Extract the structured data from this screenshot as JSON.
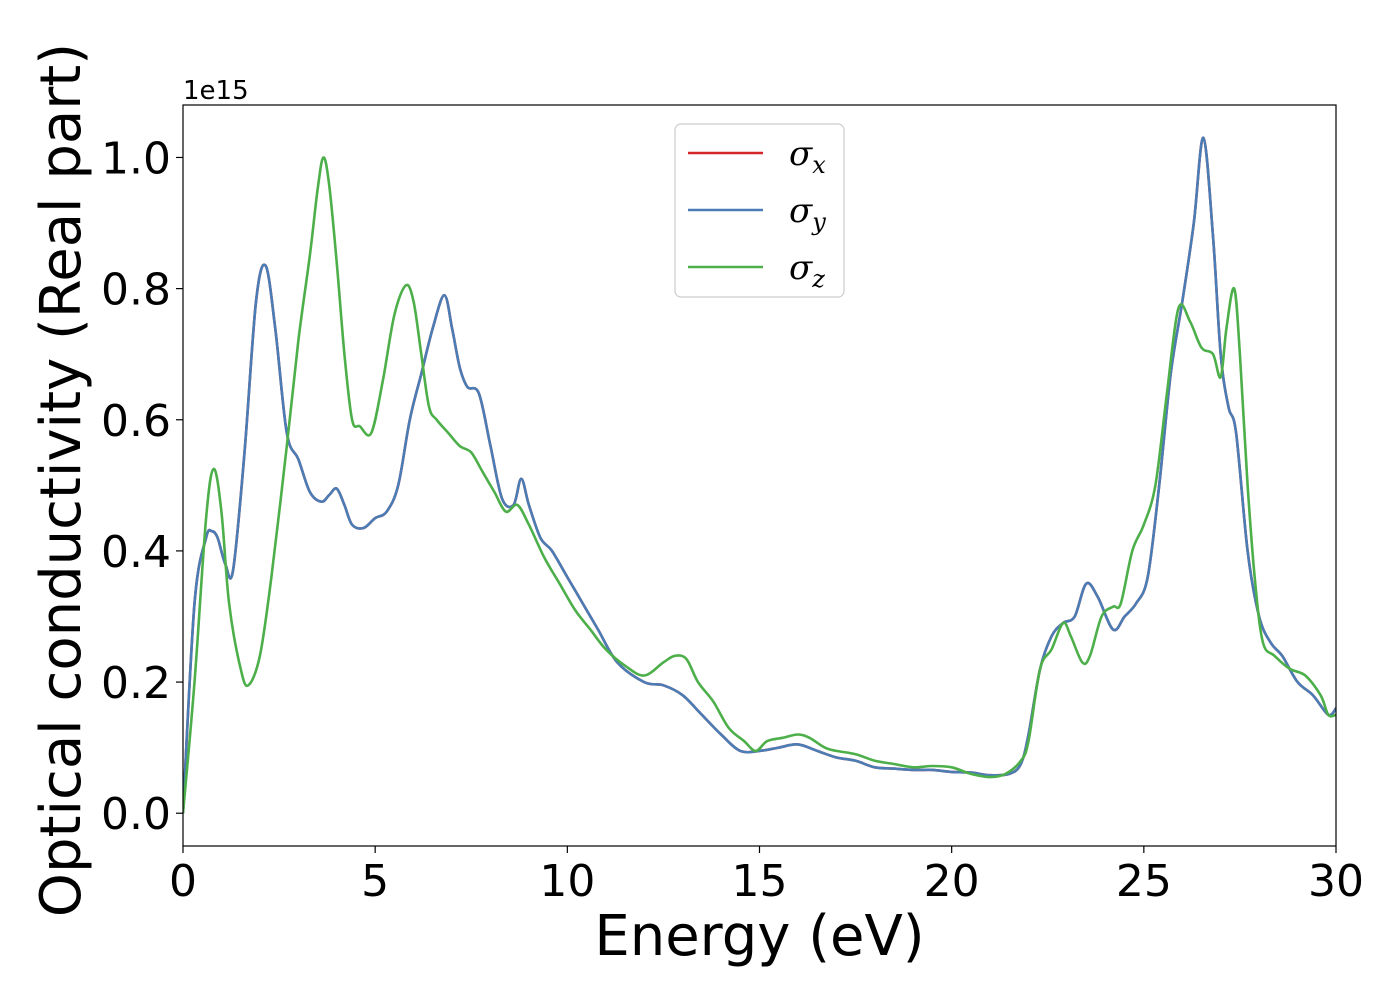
{
  "chart_data": {
    "type": "line",
    "title": "",
    "xlabel": "Energy (eV)",
    "ylabel": "Optical conductivity (Real part)",
    "y_offset_text": "1e15",
    "xlim": [
      0,
      30
    ],
    "ylim": [
      -0.05,
      1.08
    ],
    "x_ticks": [
      0,
      5,
      10,
      15,
      20,
      25,
      30
    ],
    "x_tick_labels": [
      "0",
      "5",
      "10",
      "15",
      "20",
      "25",
      "30"
    ],
    "y_ticks": [
      0.0,
      0.2,
      0.4,
      0.6,
      0.8,
      1.0
    ],
    "y_tick_labels": [
      "0.0",
      "0.2",
      "0.4",
      "0.6",
      "0.8",
      "1.0"
    ],
    "grid": false,
    "legend_position": "top-center",
    "series": [
      {
        "name": "σx",
        "legend_symbol": "σ",
        "legend_subscript": "x",
        "color": "#d62728",
        "x": [
          0,
          0.3,
          0.6,
          0.75,
          0.9,
          1.1,
          1.3,
          1.6,
          1.9,
          2.15,
          2.4,
          2.7,
          3.0,
          3.3,
          3.6,
          3.8,
          4.0,
          4.2,
          4.4,
          4.7,
          5.0,
          5.3,
          5.6,
          5.9,
          6.2,
          6.5,
          6.8,
          7.0,
          7.2,
          7.4,
          7.7,
          8.0,
          8.3,
          8.6,
          8.8,
          9.0,
          9.3,
          9.6,
          10.0,
          10.4,
          10.8,
          11.3,
          12.0,
          12.5,
          13.0,
          13.5,
          14.0,
          14.5,
          15.0,
          15.5,
          16.0,
          16.5,
          17.0,
          17.5,
          18.0,
          18.5,
          19.0,
          19.5,
          20.0,
          20.5,
          21.0,
          21.5,
          21.8,
          22.0,
          22.3,
          22.6,
          22.9,
          23.2,
          23.5,
          23.8,
          24.2,
          24.5,
          24.8,
          25.1,
          25.4,
          25.7,
          26.0,
          26.3,
          26.55,
          26.8,
          27.0,
          27.2,
          27.4,
          27.7,
          28.0,
          28.3,
          28.6,
          29.0,
          29.4,
          29.8,
          30.0
        ],
        "y": [
          0.0,
          0.32,
          0.42,
          0.43,
          0.42,
          0.38,
          0.37,
          0.55,
          0.78,
          0.835,
          0.74,
          0.58,
          0.54,
          0.49,
          0.475,
          0.485,
          0.495,
          0.47,
          0.44,
          0.435,
          0.45,
          0.46,
          0.5,
          0.6,
          0.67,
          0.74,
          0.79,
          0.74,
          0.68,
          0.65,
          0.64,
          0.56,
          0.48,
          0.47,
          0.51,
          0.47,
          0.42,
          0.4,
          0.36,
          0.32,
          0.28,
          0.23,
          0.2,
          0.195,
          0.18,
          0.15,
          0.12,
          0.095,
          0.095,
          0.1,
          0.105,
          0.095,
          0.085,
          0.08,
          0.07,
          0.068,
          0.066,
          0.066,
          0.063,
          0.062,
          0.058,
          0.06,
          0.075,
          0.12,
          0.22,
          0.27,
          0.29,
          0.3,
          0.35,
          0.33,
          0.28,
          0.3,
          0.32,
          0.36,
          0.5,
          0.67,
          0.78,
          0.9,
          1.03,
          0.88,
          0.7,
          0.62,
          0.58,
          0.4,
          0.3,
          0.26,
          0.24,
          0.2,
          0.18,
          0.15,
          0.16
        ]
      },
      {
        "name": "σy",
        "legend_symbol": "σ",
        "legend_subscript": "y",
        "color": "#4a7db5",
        "x": [
          0,
          0.3,
          0.6,
          0.75,
          0.9,
          1.1,
          1.3,
          1.6,
          1.9,
          2.15,
          2.4,
          2.7,
          3.0,
          3.3,
          3.6,
          3.8,
          4.0,
          4.2,
          4.4,
          4.7,
          5.0,
          5.3,
          5.6,
          5.9,
          6.2,
          6.5,
          6.8,
          7.0,
          7.2,
          7.4,
          7.7,
          8.0,
          8.3,
          8.6,
          8.8,
          9.0,
          9.3,
          9.6,
          10.0,
          10.4,
          10.8,
          11.3,
          12.0,
          12.5,
          13.0,
          13.5,
          14.0,
          14.5,
          15.0,
          15.5,
          16.0,
          16.5,
          17.0,
          17.5,
          18.0,
          18.5,
          19.0,
          19.5,
          20.0,
          20.5,
          21.0,
          21.5,
          21.8,
          22.0,
          22.3,
          22.6,
          22.9,
          23.2,
          23.5,
          23.8,
          24.2,
          24.5,
          24.8,
          25.1,
          25.4,
          25.7,
          26.0,
          26.3,
          26.55,
          26.8,
          27.0,
          27.2,
          27.4,
          27.7,
          28.0,
          28.3,
          28.6,
          29.0,
          29.4,
          29.8,
          30.0
        ],
        "y": [
          0.0,
          0.32,
          0.42,
          0.43,
          0.42,
          0.38,
          0.37,
          0.55,
          0.78,
          0.835,
          0.74,
          0.58,
          0.54,
          0.49,
          0.475,
          0.485,
          0.495,
          0.47,
          0.44,
          0.435,
          0.45,
          0.46,
          0.5,
          0.6,
          0.67,
          0.74,
          0.79,
          0.74,
          0.68,
          0.65,
          0.64,
          0.56,
          0.48,
          0.47,
          0.51,
          0.47,
          0.42,
          0.4,
          0.36,
          0.32,
          0.28,
          0.23,
          0.2,
          0.195,
          0.18,
          0.15,
          0.12,
          0.095,
          0.095,
          0.1,
          0.105,
          0.095,
          0.085,
          0.08,
          0.07,
          0.068,
          0.066,
          0.066,
          0.063,
          0.062,
          0.058,
          0.06,
          0.075,
          0.12,
          0.22,
          0.27,
          0.29,
          0.3,
          0.35,
          0.33,
          0.28,
          0.3,
          0.32,
          0.36,
          0.5,
          0.67,
          0.78,
          0.9,
          1.03,
          0.88,
          0.7,
          0.62,
          0.58,
          0.4,
          0.3,
          0.26,
          0.24,
          0.2,
          0.18,
          0.15,
          0.16
        ]
      },
      {
        "name": "σz",
        "legend_symbol": "σ",
        "legend_subscript": "z",
        "color": "#4daf4a",
        "x": [
          0,
          0.3,
          0.6,
          0.8,
          1.0,
          1.2,
          1.5,
          1.7,
          2.0,
          2.3,
          2.7,
          3.0,
          3.3,
          3.5,
          3.65,
          3.8,
          4.0,
          4.2,
          4.4,
          4.6,
          4.9,
          5.2,
          5.5,
          5.8,
          6.0,
          6.2,
          6.4,
          6.6,
          6.9,
          7.2,
          7.5,
          7.8,
          8.1,
          8.4,
          8.7,
          9.0,
          9.4,
          9.8,
          10.2,
          10.6,
          11.0,
          11.5,
          12.0,
          12.5,
          12.8,
          13.1,
          13.4,
          13.8,
          14.2,
          14.6,
          14.9,
          15.2,
          15.6,
          16.0,
          16.3,
          16.7,
          17.0,
          17.5,
          18.0,
          18.5,
          19.0,
          19.5,
          20.0,
          20.5,
          21.0,
          21.4,
          21.8,
          22.0,
          22.3,
          22.6,
          22.9,
          23.1,
          23.4,
          23.6,
          23.9,
          24.2,
          24.4,
          24.7,
          25.0,
          25.3,
          25.6,
          25.9,
          26.2,
          26.5,
          26.8,
          27.0,
          27.15,
          27.35,
          27.5,
          27.7,
          27.9,
          28.1,
          28.4,
          28.8,
          29.2,
          29.6,
          29.8,
          30.0
        ],
        "y": [
          0.0,
          0.2,
          0.45,
          0.525,
          0.46,
          0.32,
          0.22,
          0.195,
          0.24,
          0.36,
          0.56,
          0.72,
          0.85,
          0.95,
          1.0,
          0.96,
          0.84,
          0.7,
          0.6,
          0.59,
          0.58,
          0.66,
          0.76,
          0.805,
          0.78,
          0.7,
          0.62,
          0.6,
          0.58,
          0.56,
          0.55,
          0.52,
          0.49,
          0.46,
          0.47,
          0.44,
          0.39,
          0.35,
          0.31,
          0.28,
          0.25,
          0.225,
          0.21,
          0.23,
          0.24,
          0.235,
          0.2,
          0.17,
          0.13,
          0.11,
          0.095,
          0.11,
          0.115,
          0.12,
          0.115,
          0.1,
          0.095,
          0.09,
          0.08,
          0.075,
          0.07,
          0.072,
          0.07,
          0.06,
          0.055,
          0.06,
          0.08,
          0.11,
          0.22,
          0.25,
          0.29,
          0.27,
          0.23,
          0.24,
          0.3,
          0.315,
          0.32,
          0.4,
          0.44,
          0.5,
          0.64,
          0.77,
          0.75,
          0.71,
          0.7,
          0.665,
          0.74,
          0.8,
          0.7,
          0.5,
          0.35,
          0.26,
          0.24,
          0.22,
          0.21,
          0.18,
          0.15,
          0.15
        ]
      }
    ]
  }
}
